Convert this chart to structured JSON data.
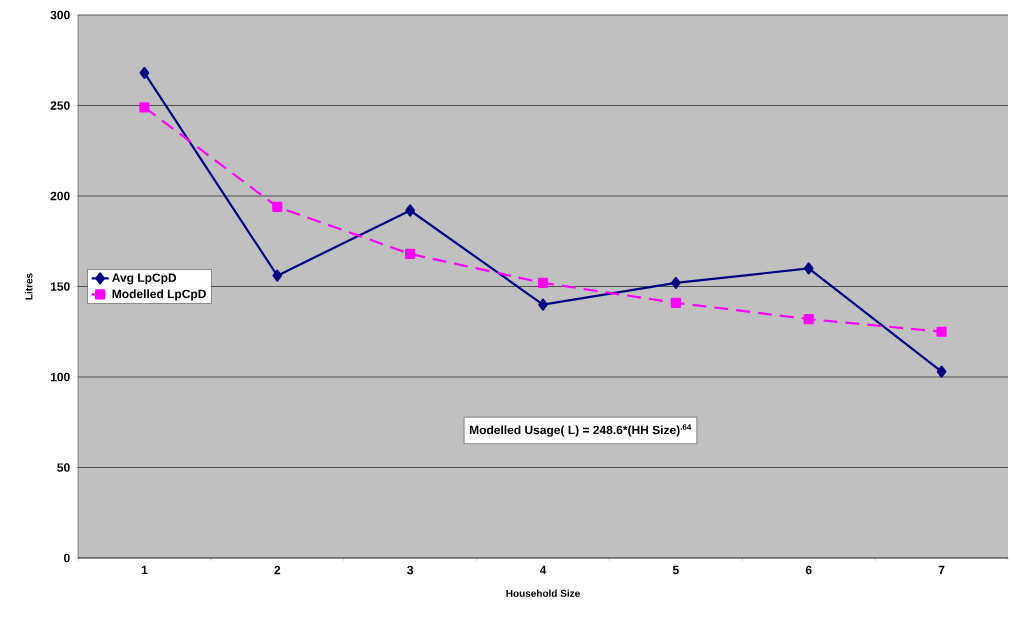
{
  "chart_data": {
    "type": "line",
    "xlabel": "Household Size",
    "ylabel": "Litres",
    "categories": [
      "1",
      "2",
      "3",
      "4",
      "5",
      "6",
      "7"
    ],
    "series": [
      {
        "name": "Avg LpCpD",
        "color": "#000080",
        "values": [
          268,
          156,
          192,
          140,
          152,
          160,
          103
        ],
        "marker": "diamond",
        "line_style": "solid"
      },
      {
        "name": "Modelled LpCpD",
        "color": "#ff00ff",
        "values": [
          249,
          194,
          168,
          152,
          141,
          132,
          125
        ],
        "marker": "square",
        "line_style": "dashed"
      }
    ],
    "ylim": [
      0,
      300
    ],
    "yticks": [
      0,
      50,
      100,
      150,
      200,
      250,
      300
    ],
    "grid": "y",
    "legend": "left",
    "annotations": [
      "Modelled Usage( L) = 248.6*(HH Size)$^{.64}$"
    ]
  }
}
